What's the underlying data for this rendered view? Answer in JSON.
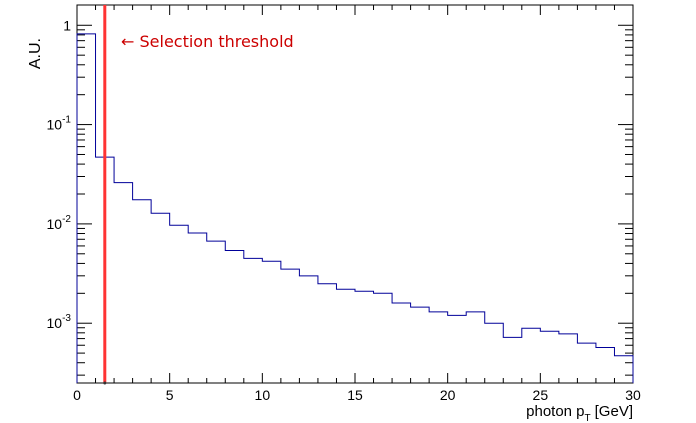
{
  "chart_data": {
    "type": "histogram",
    "title": "",
    "xlabel": "photon p",
    "xlabel_subscript": "T",
    "xlabel_unit": "[GeV]",
    "ylabel": "A.U.",
    "xlim": [
      0,
      30
    ],
    "ylim": [
      0.00025,
      1.6
    ],
    "yscale": "log",
    "grid": false,
    "x_ticks": [
      0,
      5,
      10,
      15,
      20,
      25,
      30
    ],
    "y_ticks": [
      {
        "value": 1,
        "base": "1",
        "exp": ""
      },
      {
        "value": 0.1,
        "base": "10",
        "exp": "-1"
      },
      {
        "value": 0.01,
        "base": "10",
        "exp": "-2"
      },
      {
        "value": 0.001,
        "base": "10",
        "exp": "-3"
      }
    ],
    "bin_edges": [
      0,
      1,
      2,
      3,
      4,
      5,
      6,
      7,
      8,
      9,
      10,
      11,
      12,
      13,
      14,
      15,
      16,
      17,
      18,
      19,
      20,
      21,
      22,
      23,
      24,
      25,
      26,
      27,
      28,
      29,
      30
    ],
    "values": [
      0.82,
      0.047,
      0.026,
      0.0175,
      0.0128,
      0.0097,
      0.0081,
      0.0067,
      0.0054,
      0.0045,
      0.0042,
      0.0035,
      0.003,
      0.0025,
      0.0022,
      0.0021,
      0.002,
      0.0016,
      0.00145,
      0.0013,
      0.0012,
      0.0013,
      0.001,
      0.00072,
      0.00089,
      0.00083,
      0.00078,
      0.00063,
      0.00057,
      0.00047
    ],
    "line_color": "#000099",
    "threshold": {
      "x": 1.5,
      "label": "← Selection threshold",
      "color": "#ff3333",
      "label_color": "#cc0000"
    }
  }
}
